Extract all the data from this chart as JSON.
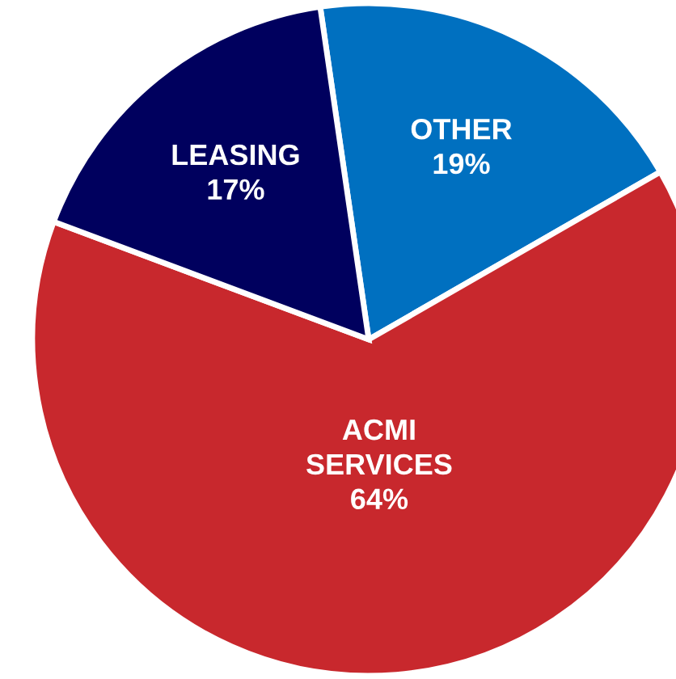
{
  "chart_data": {
    "type": "pie",
    "categories": [
      "OTHER",
      "ACMI\nSERVICES",
      "LEASING"
    ],
    "values": [
      19,
      64,
      17
    ],
    "colors": [
      "#0070c0",
      "#c8282d",
      "#00005e"
    ],
    "value_labels": [
      "19%",
      "64%",
      "17%"
    ],
    "legend": false
  }
}
